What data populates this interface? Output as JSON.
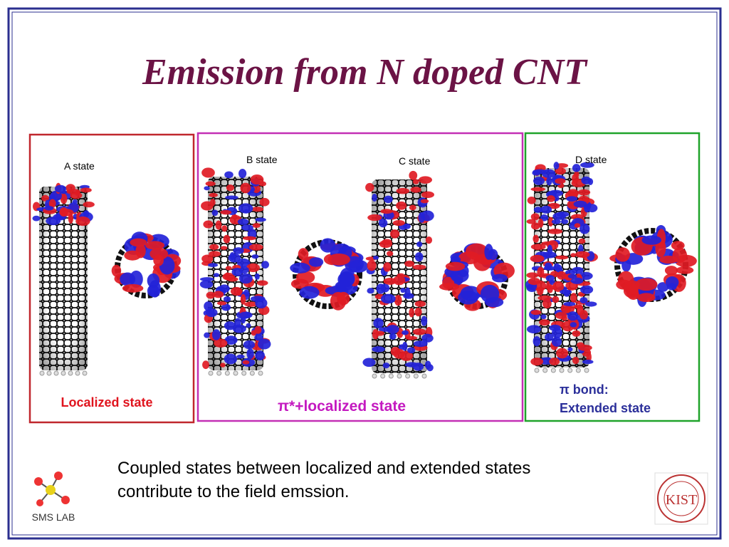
{
  "title": "Emission from N doped CNT",
  "panels": [
    {
      "states": [
        "A state"
      ],
      "caption": [
        "Localized state"
      ]
    },
    {
      "states": [
        "B state",
        "C state"
      ],
      "caption": [
        "π*+localized state"
      ]
    },
    {
      "states": [
        "D state"
      ],
      "caption": [
        "π bond:",
        "Extended state"
      ]
    }
  ],
  "note": [
    "Coupled states between localized and extended states",
    "contribute to the field emssion."
  ],
  "logos": {
    "left": "SMS LAB",
    "right": "KIST"
  }
}
